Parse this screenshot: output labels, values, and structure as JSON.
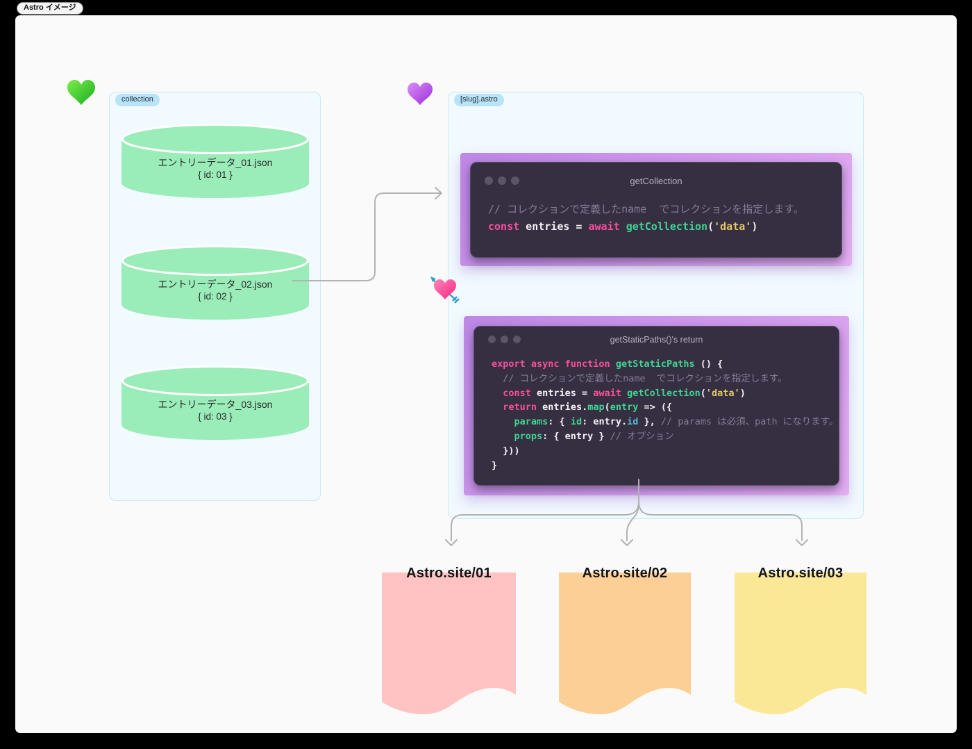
{
  "app": {
    "badge": "Astro イメージ"
  },
  "collection": {
    "label": "collection",
    "cylinders": [
      {
        "title": "エントリーデータ_01.json",
        "subtitle": "{ id: 01 }"
      },
      {
        "title": "エントリーデータ_02.json",
        "subtitle": "{ id: 02 }"
      },
      {
        "title": "エントリーデータ_03.json",
        "subtitle": "{ id: 03 }"
      }
    ]
  },
  "slug": {
    "label": "[slug].astro",
    "windows": [
      {
        "title": "getCollection",
        "lines": [
          [
            [
              "c",
              "// コレクションで定義したname  でコレクションを指定します。"
            ]
          ],
          [
            [
              "k",
              "const"
            ],
            [
              "w",
              " entries = "
            ],
            [
              "k",
              "await"
            ],
            [
              "w",
              " "
            ],
            [
              "f",
              "getCollection"
            ],
            [
              "w",
              "("
            ],
            [
              "s",
              "'data'"
            ],
            [
              "w",
              ")"
            ]
          ]
        ]
      },
      {
        "title": "getStaticPaths()'s return",
        "lines": [
          [
            [
              "k",
              "export async function"
            ],
            [
              "w",
              " "
            ],
            [
              "f",
              "getStaticPaths"
            ],
            [
              "w",
              " () {"
            ]
          ],
          [
            [
              "w",
              "  "
            ],
            [
              "c",
              "// コレクションで定義したname  でコレクションを指定します。"
            ]
          ],
          [
            [
              "w",
              "  "
            ],
            [
              "k",
              "const"
            ],
            [
              "w",
              " entries = "
            ],
            [
              "k",
              "await"
            ],
            [
              "w",
              " "
            ],
            [
              "f",
              "getCollection"
            ],
            [
              "w",
              "("
            ],
            [
              "s",
              "'data'"
            ],
            [
              "w",
              ")"
            ]
          ],
          [
            [
              "w",
              "  "
            ],
            [
              "k",
              "return"
            ],
            [
              "w",
              " entries."
            ],
            [
              "f",
              "map"
            ],
            [
              "w",
              "("
            ],
            [
              "f",
              "entry"
            ],
            [
              "w",
              " => ({"
            ]
          ],
          [
            [
              "w",
              "    "
            ],
            [
              "f",
              "params"
            ],
            [
              "w",
              ": { "
            ],
            [
              "f",
              "id"
            ],
            [
              "w",
              ": entry."
            ],
            [
              "b",
              "id"
            ],
            [
              "w",
              " }, "
            ],
            [
              "c",
              "// params は必須、path になります。"
            ]
          ],
          [
            [
              "w",
              "    "
            ],
            [
              "f",
              "props"
            ],
            [
              "w",
              ": { entry } "
            ],
            [
              "c",
              "// オプション"
            ]
          ],
          [
            [
              "w",
              "  }))"
            ]
          ],
          [
            [
              "w",
              "}"
            ]
          ]
        ]
      }
    ]
  },
  "pages": [
    {
      "label": "Astro.site/01",
      "color": "#ffc3c3"
    },
    {
      "label": "Astro.site/02",
      "color": "#fccf97"
    },
    {
      "label": "Astro.site/03",
      "color": "#fbe897"
    }
  ],
  "colors": {
    "keyword_pink": "#f7509b",
    "function_green": "#3fd592",
    "string_yellow": "#e5ca67",
    "comment_gray": "#837d96",
    "plain_white": "#f3f1f6",
    "property_blue": "#54b9d5",
    "cylinder_green": "#9aecb8",
    "box_blue_bg": "#f1fafe",
    "box_blue_border": "#c8e9f7",
    "pill_blue_bg": "#b9e3f8",
    "window_dark": "#362e41",
    "purple_panel_start": "#bd87e6",
    "purple_panel_end": "#e5aff4",
    "arrow_gray": "#b2b2b2"
  }
}
